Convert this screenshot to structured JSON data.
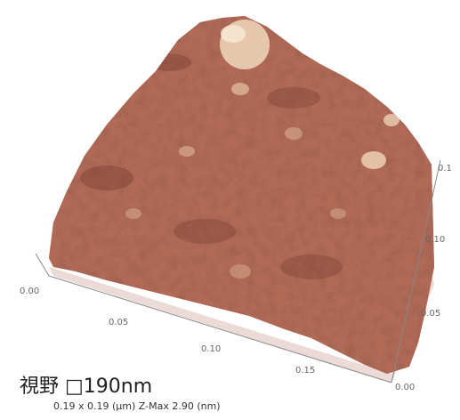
{
  "caption": {
    "field_of_view": "視野 □190nm",
    "scan_info": "0.19 x 0.19 (μm)   Z-Max 2.90 (nm)"
  },
  "axes": {
    "front_ticks": [
      "0.00",
      "0.05",
      "0.10",
      "0.15"
    ],
    "right_ticks": [
      "0.00",
      "0.05",
      "0.10",
      "0.1"
    ]
  },
  "colors": {
    "surface_base": "#b06a57",
    "surface_dark": "#6e3528",
    "surface_light": "#e9c4a6",
    "peak_highlight": "#f0d8bd"
  }
}
